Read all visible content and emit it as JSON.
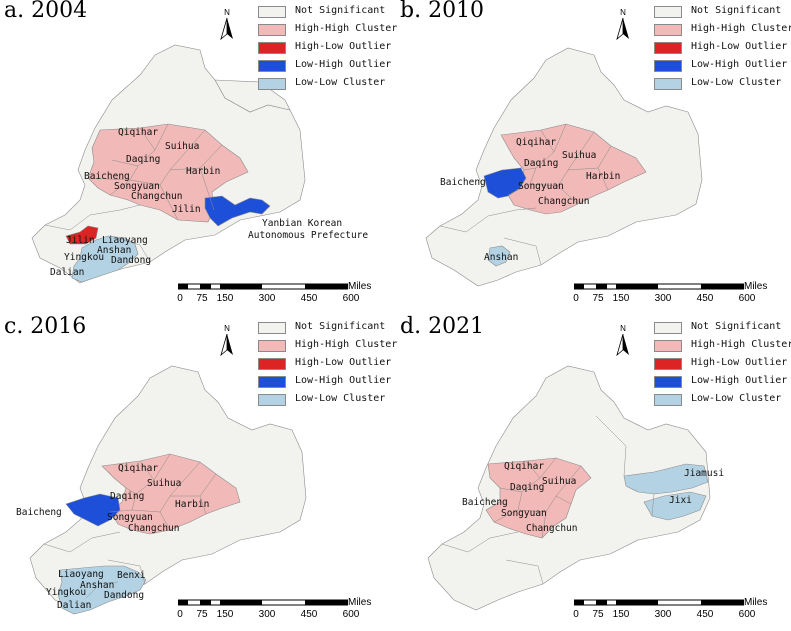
{
  "colors": {
    "not_significant": "#f2f2ef",
    "high_high": "#f1b9b7",
    "high_low": "#dc2424",
    "low_high": "#1d4fd8",
    "low_low": "#b3d3e5",
    "border": "#8c8c8c"
  },
  "legend": [
    {
      "label": "Not Significant",
      "color_key": "not_significant"
    },
    {
      "label": "High-High Cluster",
      "color_key": "high_high"
    },
    {
      "label": "High-Low Outlier",
      "color_key": "high_low"
    },
    {
      "label": "Low-High Outlier",
      "color_key": "low_high"
    },
    {
      "label": "Low-Low Cluster",
      "color_key": "low_low"
    }
  ],
  "north_arrow": "N",
  "scale": {
    "unit": "Miles",
    "ticks": [
      "0",
      "75",
      "150",
      "300",
      "450",
      "600"
    ]
  },
  "panels": [
    {
      "title": "a. 2004",
      "high_high": [
        "Qiqihar",
        "Suihua",
        "Daqing",
        "Harbin",
        "Baicheng",
        "Songyuan",
        "Changchun",
        "Jilin"
      ],
      "high_low": [
        "Jilin"
      ],
      "low_high": [
        "Yanbian Korean Autonomous Prefecture"
      ],
      "low_low": [
        "Liaoyang",
        "Anshan",
        "Yingkou",
        "Dandong",
        "Dalian"
      ],
      "labels": [
        "Qiqihar",
        "Suihua",
        "Daqing",
        "Harbin",
        "Baicheng",
        "Songyuan",
        "Changchun",
        "Jilin",
        "Yanbian Korean",
        "Autonomous Prefecture",
        "Jilin",
        "Liaoyang",
        "Anshan",
        "Yingkou",
        "Dandong",
        "Dalian"
      ]
    },
    {
      "title": "b. 2010",
      "high_high": [
        "Qiqihar",
        "Suihua",
        "Daqing",
        "Harbin",
        "Songyuan",
        "Changchun"
      ],
      "high_low": [],
      "low_high": [
        "Baicheng"
      ],
      "low_low": [
        "Anshan"
      ],
      "labels": [
        "Qiqihar",
        "Suihua",
        "Daqing",
        "Harbin",
        "Baicheng",
        "Songyuan",
        "Changchun",
        "Anshan"
      ]
    },
    {
      "title": "c. 2016",
      "high_high": [
        "Qiqihar",
        "Suihua",
        "Daqing",
        "Harbin",
        "Songyuan",
        "Changchun"
      ],
      "high_low": [],
      "low_high": [
        "Baicheng"
      ],
      "low_low": [
        "Liaoyang",
        "Benxi",
        "Anshan",
        "Yingkou",
        "Dandong",
        "Dalian"
      ],
      "labels": [
        "Qiqihar",
        "Suihua",
        "Daqing",
        "Harbin",
        "Baicheng",
        "Songyuan",
        "Changchun",
        "Liaoyang",
        "Benxi",
        "Anshan",
        "Yingkou",
        "Dandong",
        "Dalian"
      ]
    },
    {
      "title": "d. 2021",
      "high_high": [
        "Qiqihar",
        "Suihua",
        "Daqing",
        "Baicheng",
        "Songyuan",
        "Changchun"
      ],
      "high_low": [],
      "low_high": [],
      "low_low": [
        "Jiamusi",
        "Jixi"
      ],
      "labels": [
        "Qiqihar",
        "Suihua",
        "Daqing",
        "Baicheng",
        "Songyuan",
        "Changchun",
        "Jiamusi",
        "Jixi"
      ]
    }
  ]
}
